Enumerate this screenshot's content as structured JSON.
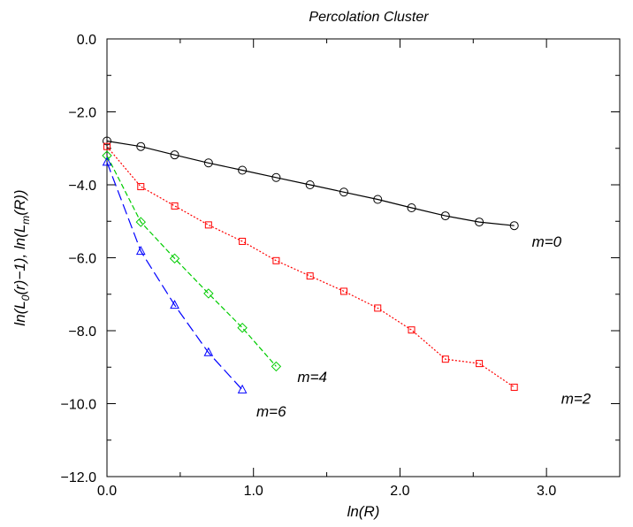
{
  "chart_data": {
    "type": "line",
    "title": "Percolation Cluster",
    "xlabel": "ln(R)",
    "ylabel_parts": [
      "ln(L",
      "0",
      "(r)−1), ln(L",
      "m",
      "(R))"
    ],
    "xlim": [
      0,
      3.5
    ],
    "ylim": [
      -12,
      0
    ],
    "xticks": [
      0,
      1,
      2,
      3
    ],
    "xtick_labels": [
      "0.0",
      "1.0",
      "2.0",
      "3.0"
    ],
    "yticks": [
      0,
      -2,
      -4,
      -6,
      -8,
      -10,
      -12
    ],
    "ytick_labels": [
      "0.0",
      "−2.0",
      "−4.0",
      "−6.0",
      "−8.0",
      "−10.0",
      "−12.0"
    ],
    "grid": false,
    "series": [
      {
        "name": "m=0",
        "color": "#000000",
        "marker": "circle",
        "dash": "solid",
        "label_at": [
          2.9,
          -5.7
        ],
        "x": [
          0,
          0.231,
          0.462,
          0.693,
          0.924,
          1.155,
          1.386,
          1.617,
          1.848,
          2.079,
          2.31,
          2.541,
          2.78
        ],
        "y": [
          -2.8,
          -2.95,
          -3.18,
          -3.4,
          -3.6,
          -3.8,
          -4.0,
          -4.2,
          -4.4,
          -4.63,
          -4.85,
          -5.02,
          -5.12
        ]
      },
      {
        "name": "m=2",
        "color": "#ff0000",
        "marker": "square",
        "dash": "dotted",
        "label_at": [
          3.1,
          -10.0
        ],
        "x": [
          0,
          0.231,
          0.462,
          0.693,
          0.924,
          1.155,
          1.386,
          1.617,
          1.848,
          2.079,
          2.31,
          2.541,
          2.78
        ],
        "y": [
          -2.95,
          -4.05,
          -4.58,
          -5.1,
          -5.55,
          -6.08,
          -6.5,
          -6.92,
          -7.38,
          -7.98,
          -8.78,
          -8.9,
          -9.55
        ]
      },
      {
        "name": "m=4",
        "color": "#00cc00",
        "marker": "diamond",
        "dash": "dashed",
        "label_at": [
          1.3,
          -9.4
        ],
        "x": [
          0,
          0.231,
          0.462,
          0.693,
          0.924,
          1.155
        ],
        "y": [
          -3.2,
          -5.02,
          -6.02,
          -6.98,
          -7.92,
          -8.98
        ]
      },
      {
        "name": "m=6",
        "color": "#0000ff",
        "marker": "triangle",
        "dash": "longdash",
        "label_at": [
          1.02,
          -10.35
        ],
        "x": [
          0,
          0.231,
          0.462,
          0.693,
          0.924
        ],
        "y": [
          -3.38,
          -5.82,
          -7.3,
          -8.6,
          -9.62
        ]
      }
    ]
  }
}
